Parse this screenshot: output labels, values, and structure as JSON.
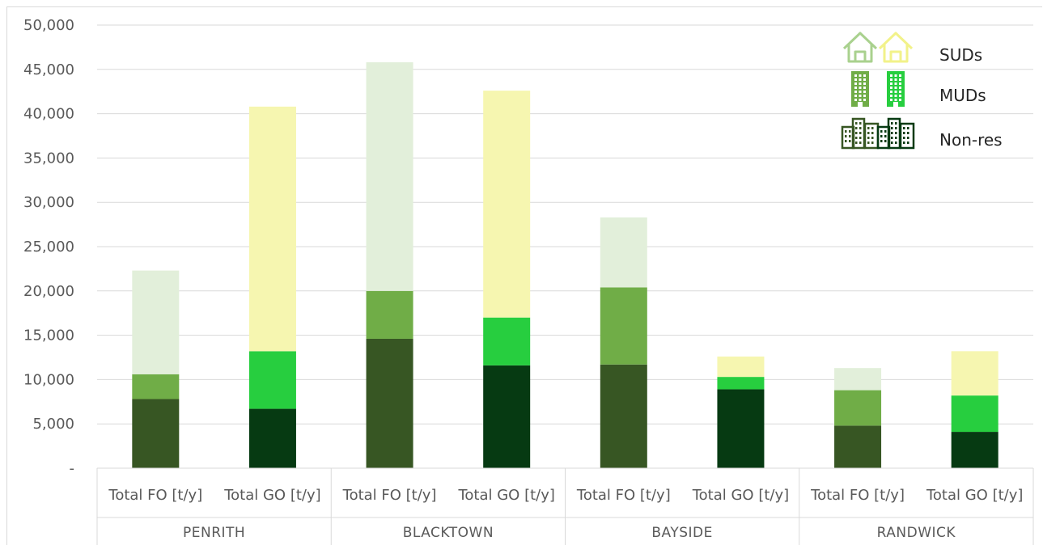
{
  "chart_data": {
    "type": "bar",
    "stacked": true,
    "ylim": [
      0,
      50000
    ],
    "y_ticks": [
      0,
      5000,
      10000,
      15000,
      20000,
      25000,
      30000,
      35000,
      40000,
      45000,
      50000
    ],
    "y_tick_labels": [
      "-",
      "5,000",
      "10,000",
      "15,000",
      "20,000",
      "25,000",
      "30,000",
      "35,000",
      "40,000",
      "45,000",
      "50,000"
    ],
    "grid": true,
    "legend_position": "top-right",
    "groups": [
      "PENRITH",
      "BLACKTOWN",
      "BAYSIDE",
      "RANDWICK"
    ],
    "categories": [
      "Total FO [t/y]",
      "Total GO [t/y]",
      "Total FO [t/y]",
      "Total GO [t/y]",
      "Total FO [t/y]",
      "Total GO [t/y]",
      "Total FO [t/y]",
      "Total GO [t/y]"
    ],
    "series": [
      {
        "name": "Non-res",
        "values": [
          7800,
          6700,
          14600,
          11600,
          11700,
          8900,
          4800,
          4100
        ]
      },
      {
        "name": "MUDs",
        "values": [
          2800,
          6500,
          5400,
          5400,
          8700,
          1400,
          4000,
          4100
        ]
      },
      {
        "name": "SUDs",
        "values": [
          11700,
          27600,
          25800,
          25600,
          7900,
          2300,
          2500,
          5000
        ]
      }
    ],
    "colors": {
      "FO": {
        "Non-res": "#375623",
        "MUDs": "#70ad47",
        "SUDs": "#e2efda"
      },
      "GO": {
        "Non-res": "#063a12",
        "MUDs": "#27ce3f",
        "SUDs": "#f6f6b0"
      }
    },
    "legend": [
      {
        "label": "SUDs",
        "icon": "house-icon",
        "colors": [
          "#a9d18e",
          "#f2f28a"
        ]
      },
      {
        "label": "MUDs",
        "icon": "building-icon",
        "colors": [
          "#70ad47",
          "#27ce3f"
        ]
      },
      {
        "label": "Non-res",
        "icon": "city-icon",
        "colors": [
          "#375623",
          "#063a12"
        ]
      }
    ]
  }
}
